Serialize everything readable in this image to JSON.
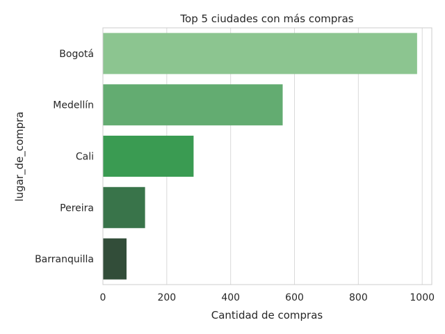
{
  "chart_data": {
    "type": "bar",
    "orientation": "horizontal",
    "title": "Top 5 ciudades con más compras",
    "xlabel": "Cantidad de compras",
    "ylabel": "lugar_de_compra",
    "categories": [
      "Bogotá",
      "Medellín",
      "Cali",
      "Pereira",
      "Barranquilla"
    ],
    "values": [
      984,
      563,
      284,
      132,
      74
    ],
    "xlim": [
      0,
      1030
    ],
    "xticks": [
      0,
      200,
      400,
      600,
      800,
      1000
    ],
    "grid": "vertical",
    "colors": [
      "#8cc590",
      "#63ac71",
      "#3a9b52",
      "#39744a",
      "#324d39"
    ]
  }
}
